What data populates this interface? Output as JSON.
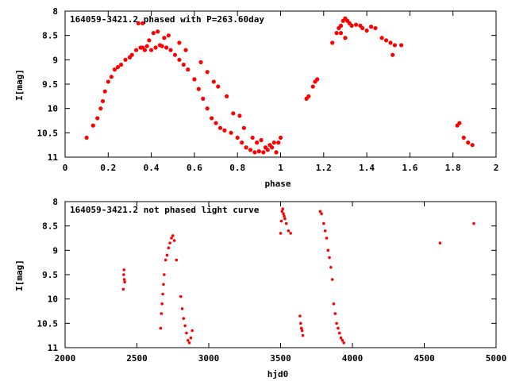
{
  "chart_data": [
    {
      "type": "scatter",
      "title": "164059-3421.2 phased with P=263.60day",
      "xlabel": "phase",
      "ylabel": "I[mag]",
      "xlim": [
        0,
        2
      ],
      "ylim": [
        11,
        8
      ],
      "y_inverted": true,
      "xticks": [
        "0",
        "0.2",
        "0.4",
        "0.6",
        "0.8",
        "1",
        "1.2",
        "1.4",
        "1.6",
        "1.8",
        "2"
      ],
      "yticks": [
        "8",
        "8.5",
        "9",
        "9.5",
        "10",
        "10.5",
        "11"
      ],
      "marker_color": "#ff0000",
      "series": [
        {
          "x": [
            0.1,
            0.13,
            0.15,
            0.165,
            0.175,
            0.185,
            0.2,
            0.215,
            0.23,
            0.245,
            0.26,
            0.28,
            0.3,
            0.31,
            0.33,
            0.35,
            0.36,
            0.37,
            0.38,
            0.4,
            0.42,
            0.44,
            0.45,
            0.47,
            0.49,
            0.51,
            0.53,
            0.55,
            0.57,
            0.6,
            0.62,
            0.64,
            0.66,
            0.68,
            0.7,
            0.72,
            0.74,
            0.77,
            0.8,
            0.82,
            0.84,
            0.86,
            0.88,
            0.9,
            0.92,
            0.94,
            0.96,
            0.98,
            0.99,
            1.0,
            0.41,
            0.43,
            0.48,
            0.39,
            0.34,
            0.36,
            0.46,
            0.53,
            0.56,
            0.63,
            0.66,
            0.69,
            0.71,
            0.75,
            0.78,
            0.81,
            0.83,
            0.87,
            0.89,
            0.91,
            0.93,
            0.95,
            0.97,
            1.12,
            1.13,
            1.15,
            1.16,
            1.17,
            1.24,
            1.26,
            1.27,
            1.28,
            1.29,
            1.3,
            1.31,
            1.32,
            1.33,
            1.35,
            1.37,
            1.38,
            1.4,
            1.42,
            1.44,
            1.47,
            1.49,
            1.51,
            1.53,
            1.52,
            1.56,
            1.3,
            1.28,
            1.82,
            1.83,
            1.85,
            1.87,
            1.89
          ],
          "y": [
            10.6,
            10.35,
            10.2,
            10.0,
            9.85,
            9.65,
            9.45,
            9.35,
            9.2,
            9.15,
            9.1,
            9.0,
            8.95,
            8.9,
            8.8,
            8.75,
            8.75,
            8.8,
            8.72,
            8.8,
            8.75,
            8.7,
            8.72,
            8.75,
            8.8,
            8.9,
            9.0,
            9.1,
            9.2,
            9.4,
            9.6,
            9.8,
            10.0,
            10.2,
            10.3,
            10.4,
            10.45,
            10.5,
            10.6,
            10.7,
            10.8,
            10.85,
            10.9,
            10.88,
            10.9,
            10.85,
            10.8,
            10.9,
            10.7,
            10.6,
            8.45,
            8.42,
            8.5,
            8.6,
            8.25,
            8.25,
            8.55,
            8.65,
            8.8,
            9.05,
            9.25,
            9.45,
            9.55,
            9.75,
            10.1,
            10.15,
            10.4,
            10.6,
            10.7,
            10.65,
            10.8,
            10.75,
            10.7,
            9.8,
            9.75,
            9.55,
            9.45,
            9.4,
            8.65,
            8.45,
            8.35,
            8.3,
            8.2,
            8.15,
            8.2,
            8.25,
            8.3,
            8.28,
            8.3,
            8.35,
            8.4,
            8.32,
            8.35,
            8.55,
            8.6,
            8.65,
            8.7,
            8.9,
            8.7,
            8.55,
            8.45,
            10.35,
            10.3,
            10.6,
            10.7,
            10.75
          ]
        }
      ]
    },
    {
      "type": "scatter",
      "title": "164059-3421.2 not phased light curve",
      "xlabel": "hjd0",
      "ylabel": "I[mag]",
      "xlim": [
        2000,
        5000
      ],
      "ylim": [
        11,
        8
      ],
      "y_inverted": true,
      "xticks": [
        "2000",
        "2500",
        "3000",
        "3500",
        "4000",
        "4500",
        "5000"
      ],
      "yticks": [
        "8",
        "8.5",
        "9",
        "9.5",
        "10",
        "10.5",
        "11"
      ],
      "marker_color": "#ff0000",
      "series": [
        {
          "x": [
            2405,
            2408,
            2410,
            2412,
            2415,
            2665,
            2670,
            2675,
            2680,
            2685,
            2690,
            2700,
            2710,
            2720,
            2730,
            2740,
            2750,
            2760,
            2775,
            2805,
            2815,
            2825,
            2835,
            2845,
            2855,
            2865,
            2875,
            2885,
            3500,
            3505,
            3510,
            3515,
            3520,
            3525,
            3530,
            3540,
            3555,
            3570,
            3635,
            3640,
            3645,
            3650,
            3655,
            3775,
            3785,
            3800,
            3810,
            3820,
            3830,
            3840,
            3850,
            3860,
            3870,
            3880,
            3890,
            3900,
            3910,
            3920,
            3930,
            3940,
            4610,
            4845
          ],
          "y": [
            9.8,
            9.5,
            9.4,
            9.6,
            9.65,
            10.6,
            10.3,
            10.1,
            9.9,
            9.7,
            9.5,
            9.2,
            9.1,
            8.95,
            8.85,
            8.75,
            8.7,
            8.8,
            9.2,
            9.95,
            10.2,
            10.4,
            10.55,
            10.7,
            10.85,
            10.9,
            10.8,
            10.65,
            8.65,
            8.4,
            8.2,
            8.15,
            8.25,
            8.3,
            8.35,
            8.45,
            8.6,
            8.65,
            10.35,
            10.5,
            10.6,
            10.65,
            10.75,
            8.2,
            8.25,
            8.45,
            8.6,
            8.75,
            9.0,
            9.15,
            9.35,
            9.6,
            10.1,
            10.3,
            10.5,
            10.6,
            10.7,
            10.8,
            10.85,
            10.9,
            8.85,
            8.45
          ]
        }
      ]
    }
  ]
}
